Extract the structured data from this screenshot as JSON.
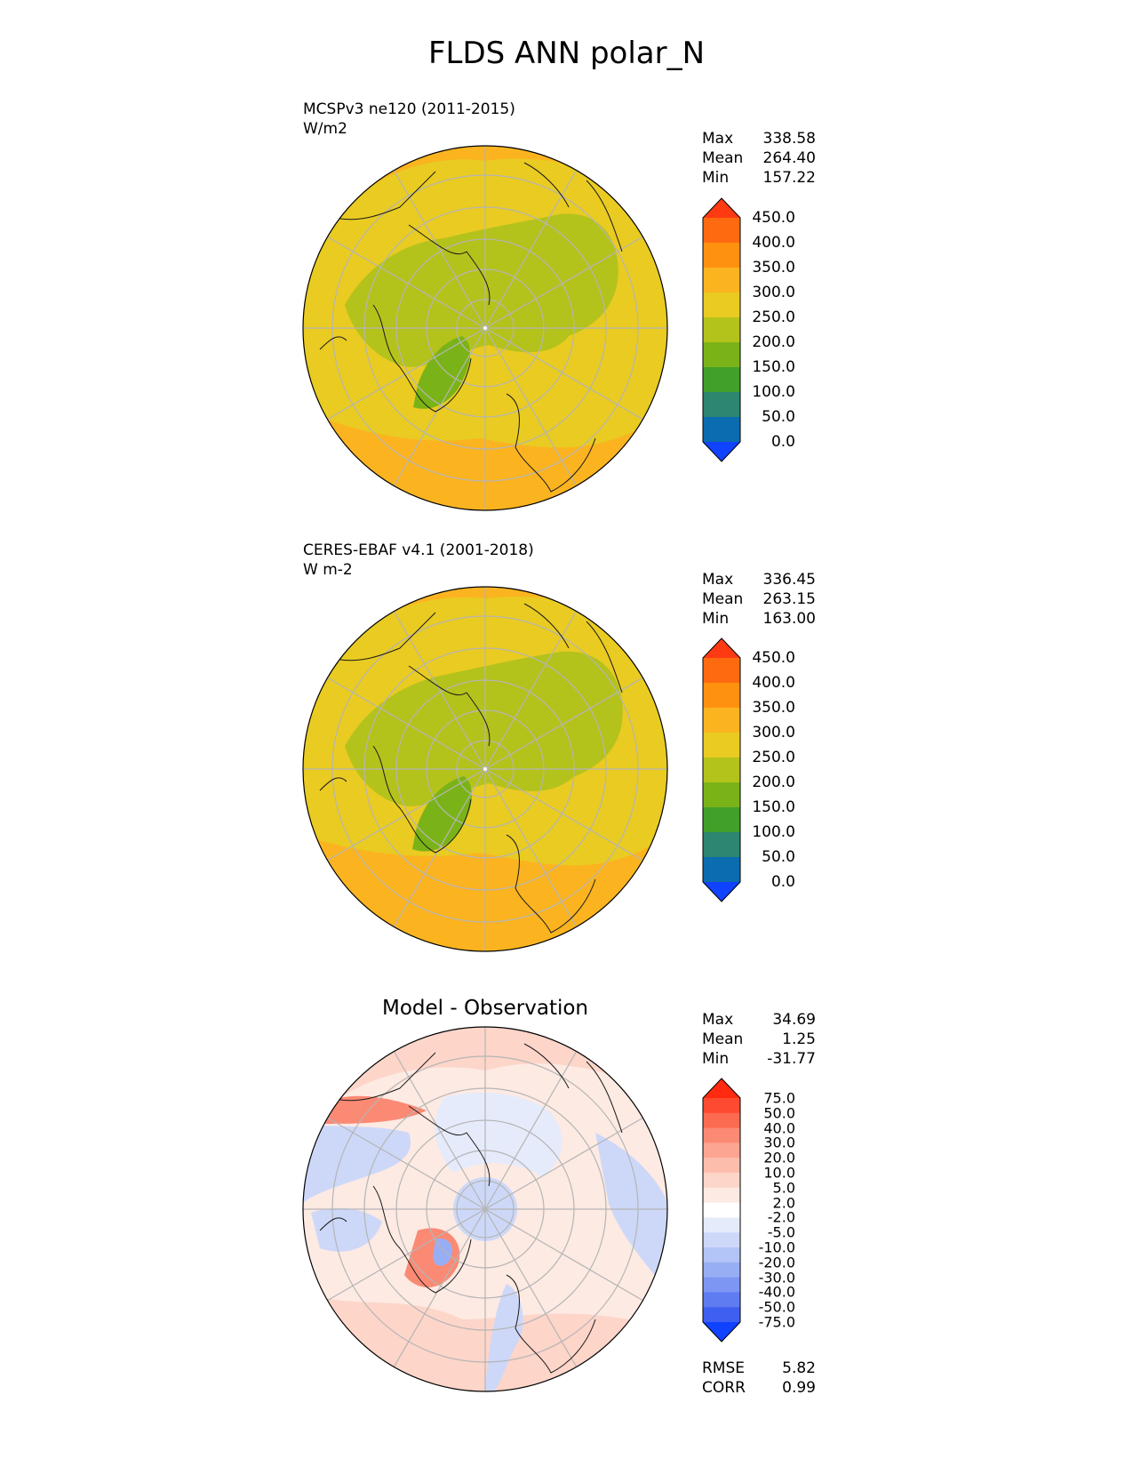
{
  "title": "FLDS ANN polar_N",
  "panels": [
    {
      "label_line1": "MCSPv3 ne120 (2011-2015)",
      "label_line2": "W/m2",
      "stats": {
        "max_label": "Max",
        "max": "338.58",
        "mean_label": "Mean",
        "mean": "264.40",
        "min_label": "Min",
        "min": "157.22"
      },
      "colorbar": {
        "ticks": [
          "450.0",
          "400.0",
          "350.0",
          "300.0",
          "250.0",
          "200.0",
          "150.0",
          "100.0",
          "50.0",
          "0.0"
        ],
        "colors_top_to_bottom": [
          "#fe3a12",
          "#fe6a10",
          "#fe9210",
          "#fbb420",
          "#e9cb22",
          "#b4c21c",
          "#7ab318",
          "#40a02a",
          "#2d8670",
          "#0b6cb0",
          "#0f43ff"
        ]
      }
    },
    {
      "label_line1": "CERES-EBAF v4.1 (2001-2018)",
      "label_line2": "W m-2",
      "stats": {
        "max_label": "Max",
        "max": "336.45",
        "mean_label": "Mean",
        "mean": "263.15",
        "min_label": "Min",
        "min": "163.00"
      },
      "colorbar": {
        "ticks": [
          "450.0",
          "400.0",
          "350.0",
          "300.0",
          "250.0",
          "200.0",
          "150.0",
          "100.0",
          "50.0",
          "0.0"
        ],
        "colors_top_to_bottom": [
          "#fe3a12",
          "#fe6a10",
          "#fe9210",
          "#fbb420",
          "#e9cb22",
          "#b4c21c",
          "#7ab318",
          "#40a02a",
          "#2d8670",
          "#0b6cb0",
          "#0f43ff"
        ]
      }
    },
    {
      "title": "Model - Observation",
      "stats": {
        "max_label": "Max",
        "max": "34.69",
        "mean_label": "Mean",
        "mean": "1.25",
        "min_label": "Min",
        "min": "-31.77"
      },
      "colorbar": {
        "ticks": [
          "75.0",
          "50.0",
          "40.0",
          "30.0",
          "20.0",
          "10.0",
          "5.0",
          "2.0",
          "-2.0",
          "-5.0",
          "-10.0",
          "-20.0",
          "-30.0",
          "-40.0",
          "-50.0",
          "-75.0"
        ],
        "colors_top_to_bottom": [
          "#ff2a10",
          "#fe4a30",
          "#fd6a52",
          "#fb8a74",
          "#fca592",
          "#fdbdad",
          "#fdd5c9",
          "#fdeae3",
          "#ffffff",
          "#e6ebfb",
          "#cdd8f8",
          "#b3c4f6",
          "#98aef4",
          "#7d96f3",
          "#5f7cf1",
          "#3f5ff0",
          "#0f43ff"
        ]
      },
      "extra": {
        "rmse_label": "RMSE",
        "rmse": "5.82",
        "corr_label": "CORR",
        "corr": "0.99"
      }
    }
  ],
  "map": {
    "projection": "north polar stereographic",
    "graticule_color": "#b5b5b5",
    "colors": {
      "outer": "#fbb420",
      "mid": "#e9cb22",
      "arctic": "#b4c21c",
      "greenland": "#7ab318",
      "diff_red_strong": "#fb8a74",
      "diff_red_light": "#fdd5c9",
      "diff_blue_light": "#cdd8f8",
      "diff_blue": "#98aef4"
    }
  }
}
